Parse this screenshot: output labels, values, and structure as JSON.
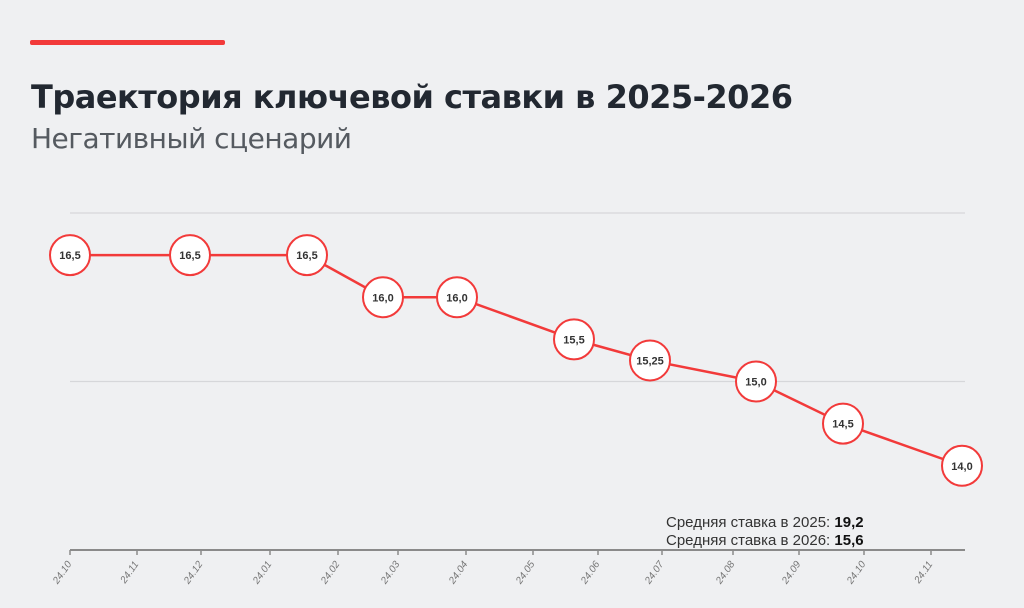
{
  "header": {
    "title": "Траектория ключевой ставки в 2025-2026",
    "subtitle": "Негативный сценарий"
  },
  "chart_data": {
    "type": "line",
    "title": "Траектория ключевой ставки в 2025-2026",
    "subtitle": "Негативный сценарий",
    "x_tick_labels": [
      "24.10",
      "24.11",
      "24.12",
      "24.01",
      "24.02",
      "24.03",
      "24.04",
      "24.05",
      "24.06",
      "24.07",
      "24.08",
      "24.09",
      "24.10",
      "24.11"
    ],
    "series": [
      {
        "values": [
          16.5,
          16.5,
          16.5,
          16.0,
          16.0,
          15.5,
          15.25,
          15.0,
          14.5,
          14.0
        ],
        "labels": [
          "16,5",
          "16,5",
          "16,5",
          "16,0",
          "16,0",
          "15,5",
          "15,25",
          "15,0",
          "14,5",
          "14,0"
        ]
      }
    ],
    "ylim": [
      13,
      17
    ],
    "gridlines_y": [
      15,
      17
    ],
    "y_tick_labels_shown": false,
    "color": "#f23a3a",
    "annotations": [
      {
        "label": "Средняя ставка в 2025:",
        "value": "19,2"
      },
      {
        "label": "Средняя ставка в 2026:",
        "value": "15,6"
      }
    ]
  }
}
